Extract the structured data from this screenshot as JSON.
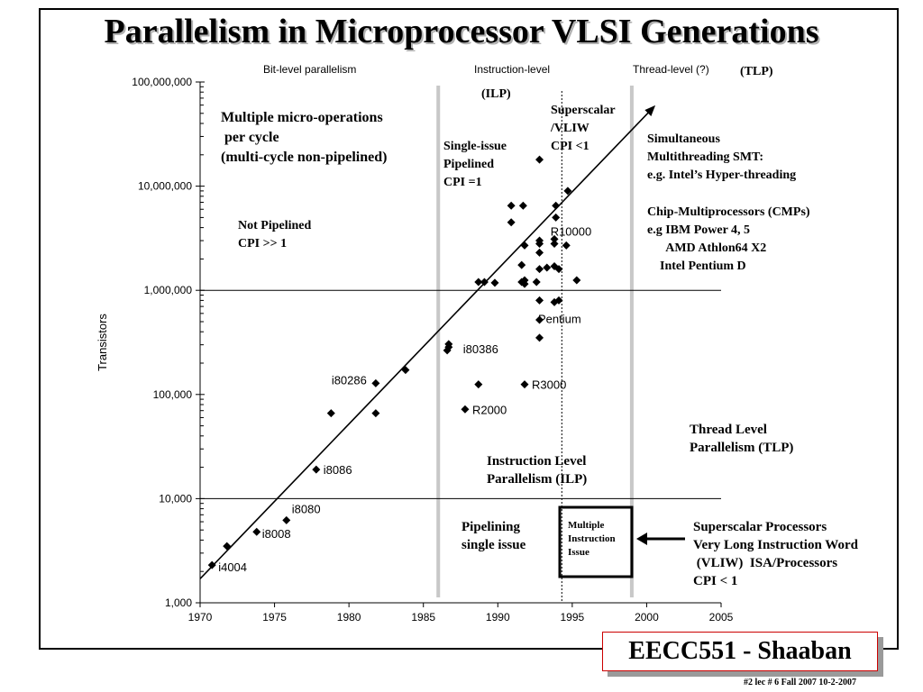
{
  "slide": {
    "title": "Parallelism in Microprocessor VLSI Generations",
    "footer_title": "EECC551 - Shaaban",
    "footer_note": "#2   lec # 6  Fall 2007  10-2-2007"
  },
  "headers": {
    "bit_level": "Bit-level parallelism",
    "instruction_level": "Instruction-level",
    "thread_level": "Thread-level (?)",
    "tlp_tag": "(TLP)",
    "ilp_tag": "(ILP)"
  },
  "annotations": {
    "multi_micro": "Multiple micro-operations\n per cycle\n(multi-cycle non-pipelined)",
    "not_pipelined": "Not Pipelined\nCPI >> 1",
    "single_issue": "Single-issue\nPipelined\nCPI =1",
    "superscalar_vliw": "Superscalar\n/VLIW\nCPI <1",
    "smt": "Simultaneous\nMultithreading SMT:\ne.g. Intel’s Hyper-threading",
    "cmp": "Chip-Multiprocessors (CMPs)\ne.g IBM Power 4, 5\n      AMD Athlon64 X2\n    Intel Pentium D",
    "tlp_label": "Thread Level\nParallelism (TLP)",
    "ilp_label": "Instruction Level\nParallelism (ILP)",
    "pipelining": "Pipelining\nsingle issue",
    "multiple_issue": "Multiple\nInstruction\nIssue",
    "superscalar_proc": "Superscalar Processors\nVery Long Instruction Word\n (VLIW)  ISA/Processors\nCPI < 1"
  },
  "chart_data": {
    "type": "scatter",
    "title": "",
    "xlabel": "",
    "ylabel": "Transistors",
    "x_scale": "linear",
    "y_scale": "log",
    "xlim": [
      1970,
      2005
    ],
    "ylim": [
      1000,
      100000000
    ],
    "x_ticks": [
      1970,
      1975,
      1980,
      1985,
      1990,
      1995,
      2000,
      2005
    ],
    "x_tick_labels": [
      "1970",
      "1975",
      "1980",
      "1985",
      "1990",
      "1995",
      "2000",
      "2005"
    ],
    "y_ticks": [
      1000,
      10000,
      100000,
      1000000,
      10000000,
      100000000
    ],
    "y_tick_labels": [
      "1,000",
      "10,000",
      "100,000",
      "1,000,000",
      "10,000,000",
      "100,000,000"
    ],
    "horizontal_gridlines": [
      10000,
      1000000
    ],
    "era_boundaries": [
      1986,
      1999
    ],
    "dotted_marker_x": 1994.3,
    "trend_line": {
      "start": [
        1970,
        1700
      ],
      "end": [
        2000.5,
        58000000
      ]
    },
    "points": [
      {
        "x": 1970.8,
        "y": 2300,
        "label": "i4004"
      },
      {
        "x": 1971.8,
        "y": 3500,
        "label": ""
      },
      {
        "x": 1973.8,
        "y": 4800,
        "label": "i8008"
      },
      {
        "x": 1975.8,
        "y": 6200,
        "label": "i8080"
      },
      {
        "x": 1977.8,
        "y": 19000,
        "label": "i8086"
      },
      {
        "x": 1978.8,
        "y": 66000,
        "label": ""
      },
      {
        "x": 1981.8,
        "y": 128000,
        "label": "i80286"
      },
      {
        "x": 1981.8,
        "y": 66000,
        "label": ""
      },
      {
        "x": 1983.8,
        "y": 172000,
        "label": ""
      },
      {
        "x": 1986.6,
        "y": 265000,
        "label": ""
      },
      {
        "x": 1986.7,
        "y": 285000,
        "label": ""
      },
      {
        "x": 1986.7,
        "y": 305000,
        "label": "i80386"
      },
      {
        "x": 1987.8,
        "y": 72000,
        "label": "R2000"
      },
      {
        "x": 1988.7,
        "y": 125000,
        "label": ""
      },
      {
        "x": 1991.8,
        "y": 125000,
        "label": "R3000"
      },
      {
        "x": 1988.7,
        "y": 1200000,
        "label": ""
      },
      {
        "x": 1989.1,
        "y": 1200000,
        "label": ""
      },
      {
        "x": 1989.8,
        "y": 1180000,
        "label": ""
      },
      {
        "x": 1991.6,
        "y": 1200000,
        "label": ""
      },
      {
        "x": 1991.8,
        "y": 1250000,
        "label": ""
      },
      {
        "x": 1991.8,
        "y": 1150000,
        "label": ""
      },
      {
        "x": 1992.6,
        "y": 1200000,
        "label": ""
      },
      {
        "x": 1992.8,
        "y": 800000,
        "label": ""
      },
      {
        "x": 1993.8,
        "y": 770000,
        "label": ""
      },
      {
        "x": 1994.1,
        "y": 800000,
        "label": "Pentium"
      },
      {
        "x": 1992.8,
        "y": 520000,
        "label": ""
      },
      {
        "x": 1992.8,
        "y": 350000,
        "label": ""
      },
      {
        "x": 1991.6,
        "y": 1750000,
        "label": ""
      },
      {
        "x": 1992.8,
        "y": 1600000,
        "label": ""
      },
      {
        "x": 1993.3,
        "y": 1650000,
        "label": ""
      },
      {
        "x": 1993.8,
        "y": 1700000,
        "label": ""
      },
      {
        "x": 1994.1,
        "y": 1600000,
        "label": ""
      },
      {
        "x": 1995.3,
        "y": 1250000,
        "label": ""
      },
      {
        "x": 1990.9,
        "y": 4500000,
        "label": ""
      },
      {
        "x": 1990.9,
        "y": 6500000,
        "label": ""
      },
      {
        "x": 1991.7,
        "y": 6500000,
        "label": ""
      },
      {
        "x": 1991.8,
        "y": 2700000,
        "label": ""
      },
      {
        "x": 1992.8,
        "y": 2800000,
        "label": ""
      },
      {
        "x": 1992.8,
        "y": 3000000,
        "label": ""
      },
      {
        "x": 1992.8,
        "y": 2300000,
        "label": ""
      },
      {
        "x": 1993.8,
        "y": 3100000,
        "label": ""
      },
      {
        "x": 1993.8,
        "y": 2800000,
        "label": ""
      },
      {
        "x": 1994.6,
        "y": 2700000,
        "label": ""
      },
      {
        "x": 1993.9,
        "y": 5000000,
        "label": "R10000"
      },
      {
        "x": 1993.9,
        "y": 6500000,
        "label": ""
      },
      {
        "x": 1994.7,
        "y": 9000000,
        "label": ""
      },
      {
        "x": 1992.8,
        "y": 18000000,
        "label": ""
      }
    ]
  }
}
